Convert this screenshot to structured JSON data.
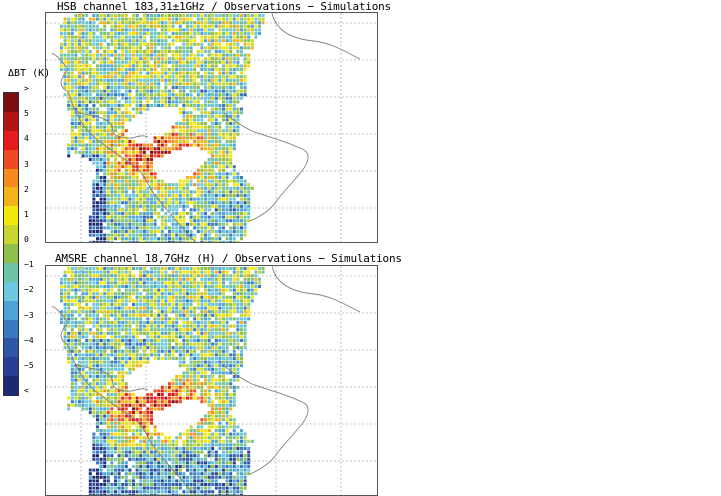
{
  "panels": [
    {
      "title": "HSB channel 183,31±1GHz / Observations − Simulations",
      "scene": "hsb"
    },
    {
      "title": "AMSRE channel 18,7GHz (H) / Observations − Simulations",
      "scene": "amsre"
    }
  ],
  "colorbar": {
    "title": "ΔBT (K)",
    "labels": [
      ">",
      "5",
      "4",
      "3",
      "2",
      "1",
      "0",
      "−1",
      "−2",
      "−3",
      "−4",
      "−5",
      "<"
    ],
    "colors": [
      "#7a1010",
      "#b51414",
      "#e41a1c",
      "#f04a23",
      "#f58a1f",
      "#f3b41b",
      "#f2e70c",
      "#c8d430",
      "#8cc04a",
      "#6fc3a6",
      "#6cc7e0",
      "#4ea3d8",
      "#3a78c0",
      "#2e57a8",
      "#283f93",
      "#1d2a72"
    ]
  }
}
